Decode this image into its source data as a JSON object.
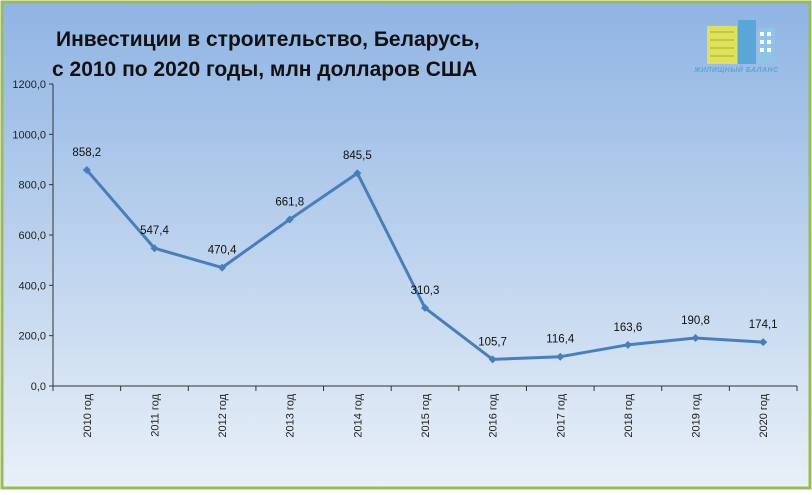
{
  "chart_data": {
    "type": "line",
    "title": "Инвестиции в строительство, Беларусь,",
    "subtitle": "с 2010 по 2020 годы, млн долларов США",
    "categories": [
      "2010 год",
      "2011 год",
      "2012 год",
      "2013 год",
      "2014 год",
      "2015 год",
      "2016 год",
      "2017 год",
      "2018 год",
      "2019 год",
      "2020 год"
    ],
    "series": [
      {
        "values": [
          858.2,
          547.4,
          470.4,
          661.8,
          845.5,
          310.3,
          105.7,
          116.4,
          163.6,
          190.8,
          174.1
        ],
        "labels": [
          "858,2",
          "547,4",
          "470,4",
          "661,8",
          "845,5",
          "310,3",
          "105,7",
          "116,4",
          "163,6",
          "190,8",
          "174,1"
        ]
      }
    ],
    "ylim": [
      0,
      1200
    ],
    "yticks": [
      "0,0",
      "200,0",
      "400,0",
      "600,0",
      "800,0",
      "1000,0",
      "1200,0"
    ],
    "grid": false,
    "legend": "none",
    "colors": {
      "line": "#4a7ebb",
      "frame": "#9bbb59",
      "bg_top": "#8fb4e3",
      "bg_bottom": "#e9f0f8",
      "axis": "#333333"
    }
  },
  "logo": {
    "text": "ЖИЛИЩНЫЙ БАЛАНС"
  }
}
